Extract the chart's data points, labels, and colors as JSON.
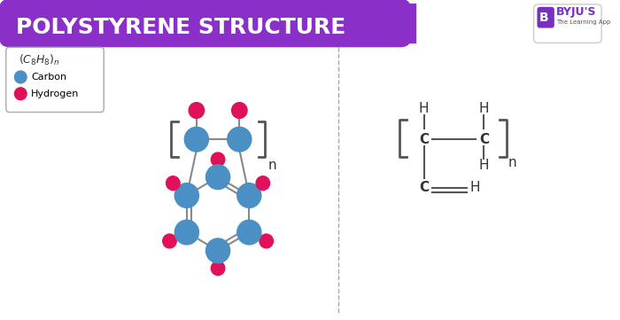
{
  "title": "POLYSTYRENE STRUCTURE",
  "title_bg": "#8B2FC9",
  "title_color": "#FFFFFF",
  "bg_color": "#FFFFFF",
  "carbon_color": "#4A90C4",
  "hydrogen_color": "#E0105A",
  "bond_color": "#888888",
  "formula": "(C₈H₈)ₙ",
  "legend_carbon": "Carbon",
  "legend_hydrogen": "Hydrogen",
  "byju_purple": "#7B2FBE"
}
